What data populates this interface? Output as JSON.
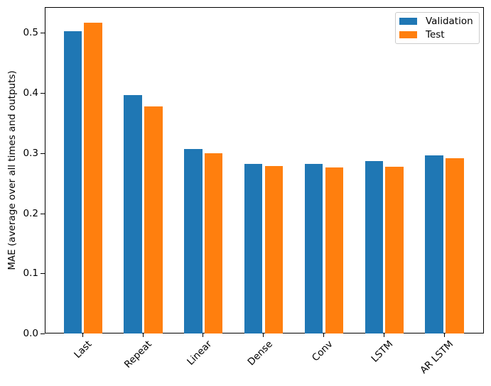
{
  "figure": {
    "background": "#ffffff"
  },
  "chart_data": {
    "type": "bar",
    "title": "",
    "categories": [
      "Last",
      "Repeat",
      "Linear",
      "Dense",
      "Conv",
      "LSTM",
      "AR LSTM"
    ],
    "series": [
      {
        "name": "Validation",
        "color": "#1f77b4",
        "values": [
          0.503,
          0.397,
          0.307,
          0.282,
          0.282,
          0.287,
          0.296
        ]
      },
      {
        "name": "Test",
        "color": "#ff7f0e",
        "values": [
          0.517,
          0.378,
          0.3,
          0.278,
          0.276,
          0.277,
          0.291
        ]
      }
    ],
    "xlabel": "",
    "ylabel": "MAE (average over all times and outputs)",
    "ytick_labels": [
      "0.0",
      "0.1",
      "0.2",
      "0.3",
      "0.4",
      "0.5"
    ],
    "yticks": [
      0.0,
      0.1,
      0.2,
      0.3,
      0.4,
      0.5
    ],
    "ylim": [
      0,
      0.543
    ],
    "xtick_rotation": 45,
    "grid": false,
    "legend": {
      "position": "upper right",
      "entries": [
        "Validation",
        "Test"
      ]
    }
  }
}
